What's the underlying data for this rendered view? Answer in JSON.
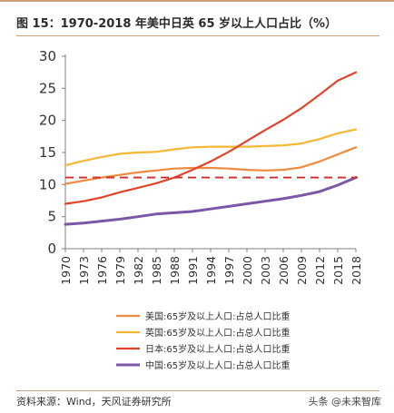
{
  "header": {
    "title": "图 15：1970-2018 年美中日英 65 岁以上人口占比（%）"
  },
  "footer": {
    "source": "资料来源：Wind，天风证券研究所",
    "watermark": "头条 @未来智库"
  },
  "chart_data": {
    "type": "line",
    "title": "图 15：1970-2018 年美中日英 65 岁以上人口占比（%）",
    "xlabel": "",
    "ylabel": "",
    "ylim": [
      0,
      30
    ],
    "yticks": [
      0,
      5,
      10,
      15,
      20,
      25,
      30
    ],
    "xticks": [
      "1970",
      "1973",
      "1976",
      "1979",
      "1982",
      "1985",
      "1988",
      "1991",
      "1994",
      "1997",
      "2000",
      "2003",
      "2006",
      "2009",
      "2012",
      "2015",
      "2018"
    ],
    "grid": false,
    "legend_position": "bottom",
    "reference_line": {
      "y": 11.1,
      "color": "#d42a2a",
      "style": "dashed"
    },
    "x": [
      1970,
      1973,
      1976,
      1979,
      1982,
      1985,
      1988,
      1991,
      1994,
      1997,
      2000,
      2003,
      2006,
      2009,
      2012,
      2015,
      2018
    ],
    "series": [
      {
        "name": "美国:65岁及以上人口:占总人口比重",
        "color": "#f08a3c",
        "values": [
          10.1,
          10.6,
          11.1,
          11.5,
          11.9,
          12.2,
          12.5,
          12.6,
          12.6,
          12.5,
          12.3,
          12.2,
          12.3,
          12.7,
          13.6,
          14.7,
          15.8
        ]
      },
      {
        "name": "英国:65岁及以上人口:占总人口比重",
        "color": "#f7b733",
        "values": [
          13.0,
          13.7,
          14.3,
          14.8,
          15.0,
          15.1,
          15.5,
          15.8,
          15.9,
          15.9,
          15.9,
          16.0,
          16.1,
          16.4,
          17.1,
          18.0,
          18.6
        ]
      },
      {
        "name": "日本:65岁及以上人口:占总人口比重",
        "color": "#e0452a",
        "values": [
          7.0,
          7.4,
          8.0,
          8.8,
          9.5,
          10.2,
          11.1,
          12.3,
          13.6,
          15.1,
          16.8,
          18.5,
          20.1,
          21.9,
          24.0,
          26.2,
          27.5
        ]
      },
      {
        "name": "中国:65岁及以上人口:占总人口比重",
        "color": "#7b57a7",
        "values": [
          3.8,
          4.0,
          4.3,
          4.6,
          5.0,
          5.4,
          5.6,
          5.8,
          6.2,
          6.6,
          7.0,
          7.4,
          7.8,
          8.3,
          8.9,
          9.9,
          11.1
        ]
      }
    ]
  }
}
